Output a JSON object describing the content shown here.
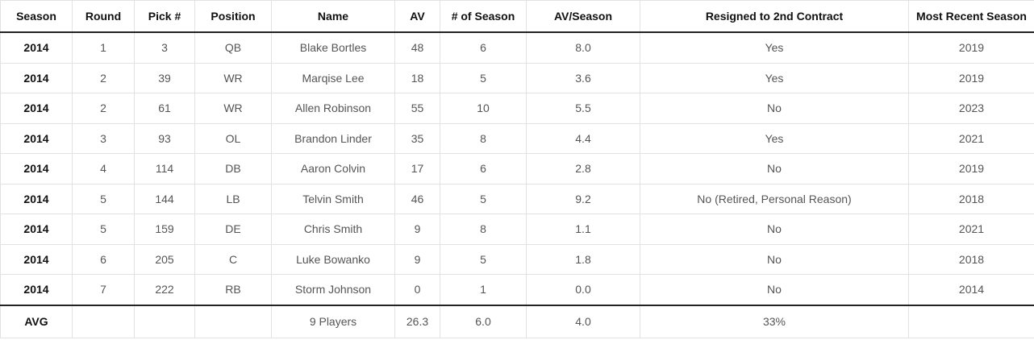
{
  "table": {
    "headers": [
      "Season",
      "Round",
      "Pick #",
      "Position",
      "Name",
      "AV",
      "# of Season",
      "AV/Season",
      "Resigned to 2nd Contract",
      "Most Recent Season"
    ],
    "rows": [
      [
        "2014",
        "1",
        "3",
        "QB",
        "Blake Bortles",
        "48",
        "6",
        "8.0",
        "Yes",
        "2019"
      ],
      [
        "2014",
        "2",
        "39",
        "WR",
        "Marqise Lee",
        "18",
        "5",
        "3.6",
        "Yes",
        "2019"
      ],
      [
        "2014",
        "2",
        "61",
        "WR",
        "Allen Robinson",
        "55",
        "10",
        "5.5",
        "No",
        "2023"
      ],
      [
        "2014",
        "3",
        "93",
        "OL",
        "Brandon Linder",
        "35",
        "8",
        "4.4",
        "Yes",
        "2021"
      ],
      [
        "2014",
        "4",
        "114",
        "DB",
        "Aaron Colvin",
        "17",
        "6",
        "2.8",
        "No",
        "2019"
      ],
      [
        "2014",
        "5",
        "144",
        "LB",
        "Telvin Smith",
        "46",
        "5",
        "9.2",
        "No (Retired, Personal Reason)",
        "2018"
      ],
      [
        "2014",
        "5",
        "159",
        "DE",
        "Chris Smith",
        "9",
        "8",
        "1.1",
        "No",
        "2021"
      ],
      [
        "2014",
        "6",
        "205",
        "C",
        "Luke Bowanko",
        "9",
        "5",
        "1.8",
        "No",
        "2018"
      ],
      [
        "2014",
        "7",
        "222",
        "RB",
        "Storm Johnson",
        "0",
        "1",
        "0.0",
        "No",
        "2014"
      ]
    ],
    "footer": [
      "AVG",
      "",
      "",
      "",
      "9 Players",
      "26.3",
      "6.0",
      "4.0",
      "33%",
      ""
    ]
  }
}
